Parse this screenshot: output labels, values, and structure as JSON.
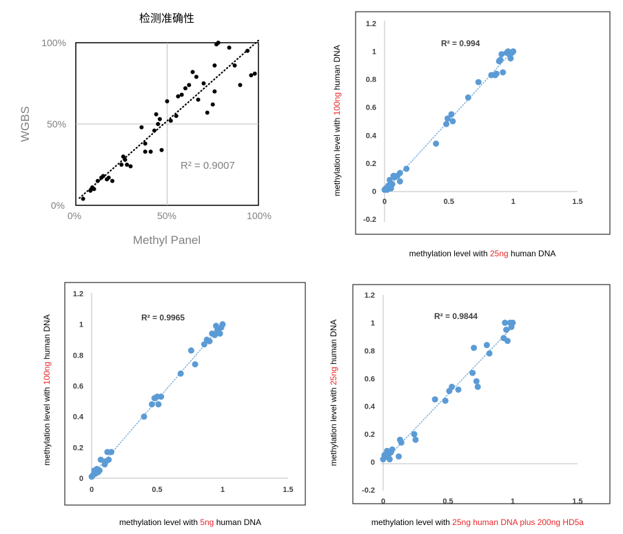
{
  "chart_data": [
    {
      "type": "scatter",
      "title": "检测准确性",
      "xlabel": "Methyl Panel",
      "ylabel": "WGBS",
      "xlim": [
        0,
        1
      ],
      "ylim": [
        0,
        1
      ],
      "xticks": [
        "0%",
        "50%",
        "100%"
      ],
      "yticks": [
        "0%",
        "50%",
        "100%"
      ],
      "annotation": "R² = 0.9007",
      "trendline": "dotted-black",
      "point_color": "#000000",
      "grid": "vertical and horizontal lines at 50%",
      "x": [
        0.04,
        0.08,
        0.09,
        0.1,
        0.12,
        0.14,
        0.15,
        0.17,
        0.18,
        0.2,
        0.25,
        0.26,
        0.27,
        0.28,
        0.3,
        0.36,
        0.38,
        0.38,
        0.41,
        0.43,
        0.44,
        0.45,
        0.46,
        0.47,
        0.5,
        0.52,
        0.55,
        0.56,
        0.58,
        0.6,
        0.62,
        0.64,
        0.66,
        0.67,
        0.7,
        0.72,
        0.75,
        0.76,
        0.76,
        0.77,
        0.78,
        0.84,
        0.87,
        0.9,
        0.94,
        0.96,
        0.98
      ],
      "y": [
        0.04,
        0.09,
        0.11,
        0.1,
        0.15,
        0.17,
        0.18,
        0.16,
        0.17,
        0.15,
        0.25,
        0.3,
        0.28,
        0.25,
        0.24,
        0.48,
        0.38,
        0.33,
        0.33,
        0.46,
        0.56,
        0.5,
        0.53,
        0.34,
        0.64,
        0.52,
        0.55,
        0.67,
        0.68,
        0.72,
        0.74,
        0.82,
        0.79,
        0.65,
        0.75,
        0.57,
        0.62,
        0.7,
        0.86,
        0.99,
        1.0,
        0.97,
        0.86,
        0.74,
        0.95,
        0.8,
        0.81
      ]
    },
    {
      "type": "scatter",
      "title": "",
      "xlabel_parts": [
        "methylation level with ",
        "25ng",
        " human DNA"
      ],
      "ylabel_parts": [
        "methylation level with ",
        "100ng",
        " human DNA"
      ],
      "xlim": [
        0,
        1.5
      ],
      "ylim": [
        -0.2,
        1.2
      ],
      "xticks": [
        "0",
        "0.5",
        "1",
        "1.5"
      ],
      "yticks": [
        "-0.2",
        "0",
        "0.2",
        "0.4",
        "0.6",
        "0.8",
        "1",
        "1.2"
      ],
      "annotation": "R² = 0.994",
      "point_color": "#5b9bd5",
      "x": [
        0,
        0.01,
        0.02,
        0.03,
        0.04,
        0.05,
        0.06,
        0.07,
        0.08,
        0.1,
        0.12,
        0.12,
        0.17,
        0.4,
        0.48,
        0.49,
        0.52,
        0.53,
        0.65,
        0.73,
        0.83,
        0.86,
        0.87,
        0.89,
        0.9,
        0.91,
        0.92,
        0.95,
        0.96,
        0.97,
        0.98,
        1.0,
        0.99
      ],
      "y": [
        0.01,
        0.02,
        0.01,
        0.04,
        0.08,
        0.02,
        0.05,
        0.11,
        0.1,
        0.11,
        0.13,
        0.07,
        0.16,
        0.34,
        0.48,
        0.52,
        0.55,
        0.5,
        0.67,
        0.78,
        0.83,
        0.83,
        0.84,
        0.93,
        0.94,
        0.98,
        0.85,
        0.99,
        1.0,
        0.98,
        0.95,
        1.0,
        0.99
      ]
    },
    {
      "type": "scatter",
      "title": "",
      "xlabel_parts": [
        "methylation level with ",
        "5ng",
        " human DNA"
      ],
      "ylabel_parts": [
        "methylation level with ",
        "100ng",
        " human DNA"
      ],
      "xlim": [
        0,
        1.5
      ],
      "ylim": [
        0,
        1.2
      ],
      "xticks": [
        "0",
        "0.5",
        "1",
        "1.5"
      ],
      "yticks": [
        "0",
        "0.2",
        "0.4",
        "0.6",
        "0.8",
        "1",
        "1.2"
      ],
      "annotation": "R² = 0.9965",
      "point_color": "#5b9bd5",
      "x": [
        0,
        0.01,
        0.02,
        0.03,
        0.04,
        0.05,
        0.06,
        0.07,
        0.1,
        0.11,
        0.12,
        0.13,
        0.15,
        0.4,
        0.46,
        0.48,
        0.5,
        0.51,
        0.53,
        0.68,
        0.76,
        0.79,
        0.86,
        0.88,
        0.9,
        0.92,
        0.94,
        0.95,
        0.96,
        0.97,
        0.98,
        0.99,
        1.0
      ],
      "y": [
        0.01,
        0.02,
        0.05,
        0.03,
        0.06,
        0.04,
        0.05,
        0.12,
        0.09,
        0.11,
        0.17,
        0.12,
        0.17,
        0.4,
        0.48,
        0.52,
        0.53,
        0.48,
        0.53,
        0.68,
        0.83,
        0.74,
        0.87,
        0.9,
        0.89,
        0.94,
        0.93,
        0.99,
        0.96,
        0.97,
        0.94,
        0.98,
        1.0
      ]
    },
    {
      "type": "scatter",
      "title": "",
      "xlabel_parts": [
        "methylation level with ",
        "25ng human DNA plus 200ng HD5a",
        ""
      ],
      "ylabel_parts": [
        "methylation level with ",
        "25ng",
        " human DNA"
      ],
      "xlim": [
        0,
        1.5
      ],
      "ylim": [
        -0.2,
        1.2
      ],
      "xticks": [
        "0",
        "0.5",
        "1",
        "1.5"
      ],
      "yticks": [
        "-0.2",
        "0",
        "0.2",
        "0.4",
        "0.6",
        "0.8",
        "1",
        "1.2"
      ],
      "annotation": "R² = 0.9844",
      "point_color": "#5b9bd5",
      "x": [
        0,
        0.01,
        0.02,
        0.03,
        0.04,
        0.05,
        0.06,
        0.07,
        0.12,
        0.13,
        0.14,
        0.24,
        0.25,
        0.4,
        0.48,
        0.51,
        0.53,
        0.58,
        0.69,
        0.7,
        0.72,
        0.73,
        0.8,
        0.82,
        0.93,
        0.94,
        0.95,
        0.96,
        0.98,
        0.99,
        1.0
      ],
      "y": [
        0.02,
        0.05,
        0.04,
        0.08,
        0.05,
        0.02,
        0.07,
        0.09,
        0.04,
        0.16,
        0.14,
        0.2,
        0.16,
        0.45,
        0.44,
        0.51,
        0.54,
        0.52,
        0.64,
        0.82,
        0.58,
        0.54,
        0.84,
        0.78,
        0.89,
        1.0,
        0.95,
        0.87,
        1.0,
        0.97,
        1.0
      ]
    }
  ]
}
